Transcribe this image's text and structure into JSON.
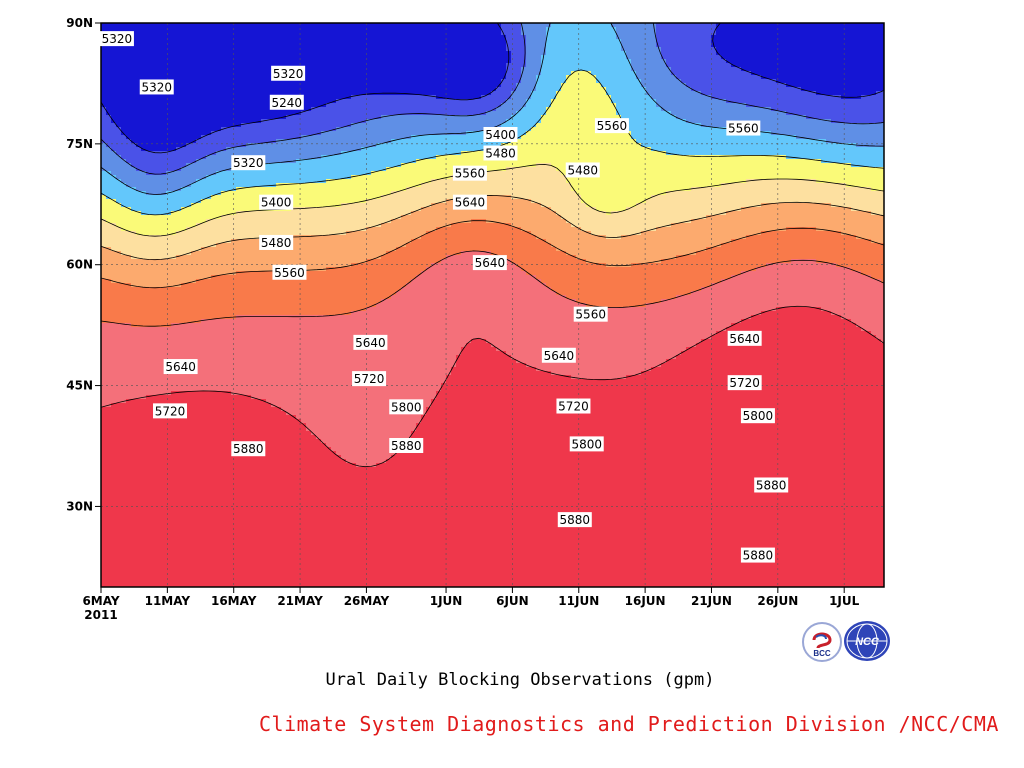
{
  "chart_data": {
    "type": "heatmap",
    "subtype": "filled-contour",
    "title": "Ural Daily Blocking Observations (gpm)",
    "xlabel": "",
    "ylabel": "",
    "x_ticks": [
      {
        "label": "6MAY",
        "day": 0,
        "year": "2011"
      },
      {
        "label": "11MAY",
        "day": 5
      },
      {
        "label": "16MAY",
        "day": 10
      },
      {
        "label": "21MAY",
        "day": 15
      },
      {
        "label": "26MAY",
        "day": 20
      },
      {
        "label": "1JUN",
        "day": 26
      },
      {
        "label": "6JUN",
        "day": 31
      },
      {
        "label": "11JUN",
        "day": 36
      },
      {
        "label": "16JUN",
        "day": 41
      },
      {
        "label": "21JUN",
        "day": 46
      },
      {
        "label": "26JUN",
        "day": 51
      },
      {
        "label": "1JUL",
        "day": 56
      }
    ],
    "y_ticks": [
      {
        "label": "30N",
        "value": 30
      },
      {
        "label": "45N",
        "value": 45
      },
      {
        "label": "60N",
        "value": 60
      },
      {
        "label": "75N",
        "value": 75
      },
      {
        "label": "90N",
        "value": 90
      }
    ],
    "x_range_days": [
      0,
      59
    ],
    "y_range_lat": [
      20,
      90
    ],
    "grid": true,
    "levels": [
      5240,
      5320,
      5400,
      5480,
      5560,
      5640,
      5720,
      5800,
      5880
    ],
    "colors": [
      "#1515d4",
      "#4a52e8",
      "#5f8fe6",
      "#63c7fb",
      "#fafa78",
      "#fde0a0",
      "#fcaa6e",
      "#f97a4a",
      "#f4707a",
      "#ef374b"
    ],
    "contour_labels": [
      {
        "text": "5320",
        "day": 1.2,
        "lat": 88.0
      },
      {
        "text": "5320",
        "day": 4.2,
        "lat": 82.0
      },
      {
        "text": "5320",
        "day": 14.1,
        "lat": 83.7
      },
      {
        "text": "5240",
        "day": 14.0,
        "lat": 80.1
      },
      {
        "text": "5320",
        "day": 11.1,
        "lat": 72.6
      },
      {
        "text": "5400",
        "day": 13.2,
        "lat": 67.7
      },
      {
        "text": "5480",
        "day": 13.2,
        "lat": 62.7
      },
      {
        "text": "5560",
        "day": 14.2,
        "lat": 59.0
      },
      {
        "text": "5400",
        "day": 30.1,
        "lat": 76.1
      },
      {
        "text": "5480",
        "day": 30.1,
        "lat": 73.8
      },
      {
        "text": "5560",
        "day": 27.8,
        "lat": 71.3
      },
      {
        "text": "5640",
        "day": 27.8,
        "lat": 67.7
      },
      {
        "text": "5640",
        "day": 29.3,
        "lat": 60.2
      },
      {
        "text": "5560",
        "day": 38.5,
        "lat": 77.2
      },
      {
        "text": "5480",
        "day": 36.3,
        "lat": 71.7
      },
      {
        "text": "5560",
        "day": 48.4,
        "lat": 76.9
      },
      {
        "text": "5560",
        "day": 36.9,
        "lat": 53.8
      },
      {
        "text": "5640",
        "day": 6.0,
        "lat": 47.3
      },
      {
        "text": "5640",
        "day": 20.3,
        "lat": 50.3
      },
      {
        "text": "5640",
        "day": 34.5,
        "lat": 48.7
      },
      {
        "text": "5640",
        "day": 48.5,
        "lat": 50.8
      },
      {
        "text": "5720",
        "day": 5.2,
        "lat": 41.8
      },
      {
        "text": "5720",
        "day": 20.2,
        "lat": 45.8
      },
      {
        "text": "5720",
        "day": 35.6,
        "lat": 42.4
      },
      {
        "text": "5720",
        "day": 48.5,
        "lat": 45.3
      },
      {
        "text": "5800",
        "day": 23.0,
        "lat": 42.3
      },
      {
        "text": "5800",
        "day": 36.6,
        "lat": 37.7
      },
      {
        "text": "5800",
        "day": 49.5,
        "lat": 41.2
      },
      {
        "text": "5880",
        "day": 11.1,
        "lat": 37.1
      },
      {
        "text": "5880",
        "day": 23.0,
        "lat": 37.5
      },
      {
        "text": "5880",
        "day": 35.7,
        "lat": 28.3
      },
      {
        "text": "5880",
        "day": 50.5,
        "lat": 32.6
      },
      {
        "text": "5880",
        "day": 49.5,
        "lat": 23.9
      }
    ]
  },
  "credit": {
    "text": "Climate System Diagnostics and Prediction Division /NCC/CMA",
    "color": "#e11b1b"
  },
  "logos": [
    {
      "name": "bcc-logo",
      "text": "BCC"
    },
    {
      "name": "ncc-logo",
      "text": "NCC"
    }
  ]
}
